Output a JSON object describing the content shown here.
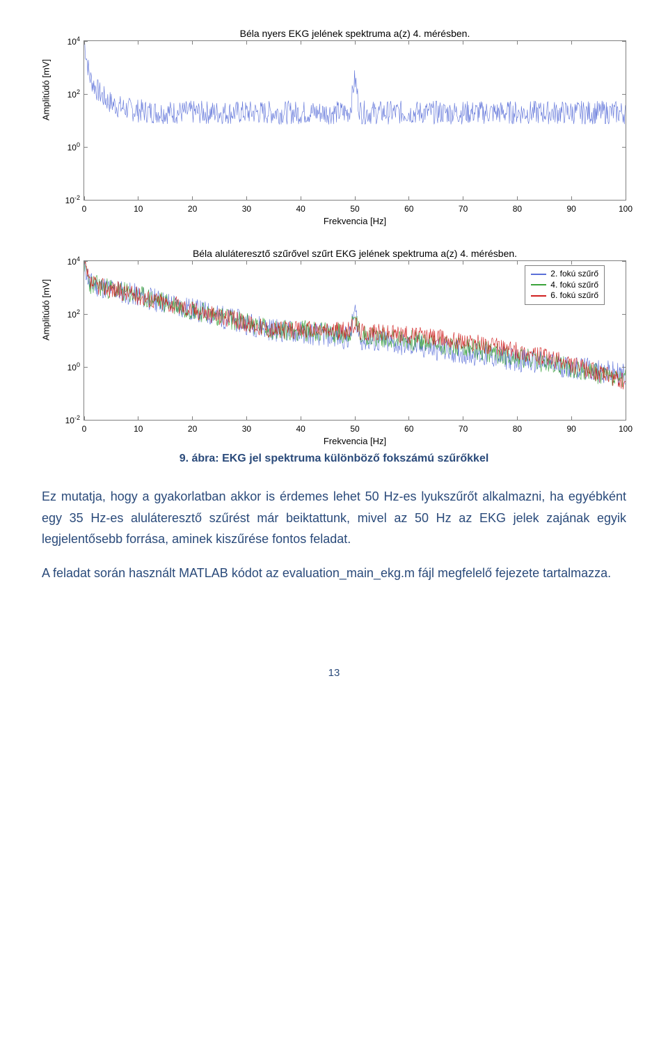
{
  "chart1": {
    "type": "line",
    "title": "Béla nyers EKG jelének spektruma a(z) 4. mérésben.",
    "ylabel": "Amplitúdó [mV]",
    "xlabel": "Frekvencia [Hz]",
    "yaxis_scale": "log",
    "yticks": [
      "4",
      "2",
      "0",
      "-2"
    ],
    "ytick_base": "10",
    "ylim_log10": [
      -2,
      4
    ],
    "xticks": [
      "0",
      "10",
      "20",
      "30",
      "40",
      "50",
      "60",
      "70",
      "80",
      "90",
      "100"
    ],
    "xlim": [
      0,
      100
    ],
    "series": [
      {
        "name": "raw",
        "color": "#5a6fd8",
        "stroke_width": 0.6
      }
    ],
    "grid_color": "#808080",
    "background_color": "#ffffff",
    "font_size_title": 14,
    "font_size_axis": 13,
    "font_size_tick": 12
  },
  "chart2": {
    "type": "line",
    "title": "Béla aluláteresztő szűrővel szűrt EKG jelének spektruma a(z) 4. mérésben.",
    "ylabel": "Amplitúdó [mV]",
    "xlabel": "Frekvencia [Hz]",
    "yaxis_scale": "log",
    "yticks": [
      "4",
      "2",
      "0",
      "-2"
    ],
    "ytick_base": "10",
    "ylim_log10": [
      -2,
      4
    ],
    "xticks": [
      "0",
      "10",
      "20",
      "30",
      "40",
      "50",
      "60",
      "70",
      "80",
      "90",
      "100"
    ],
    "xlim": [
      0,
      100
    ],
    "legend": {
      "items": [
        {
          "label": "2. fokú szűrő",
          "color": "#5a6fd8"
        },
        {
          "label": "4. fokú szűrő",
          "color": "#3aa33a"
        },
        {
          "label": "6. fokú szűrő",
          "color": "#d02020"
        }
      ],
      "position": "upper-right"
    },
    "series": [
      {
        "name": "2nd-order",
        "color": "#5a6fd8",
        "stroke_width": 0.6
      },
      {
        "name": "4th-order",
        "color": "#3aa33a",
        "stroke_width": 0.6
      },
      {
        "name": "6th-order",
        "color": "#d02020",
        "stroke_width": 0.6
      }
    ],
    "grid_color": "#808080",
    "background_color": "#ffffff",
    "font_size_title": 14,
    "font_size_axis": 13,
    "font_size_tick": 12
  },
  "caption": "9. ábra: EKG jel spektruma különböző fokszámú szűrőkkel",
  "paragraphs": [
    "Ez mutatja, hogy a gyakorlatban akkor is érdemes lehet 50 Hz-es lyukszűrőt alkalmazni, ha egyébként egy 35 Hz-es aluláteresztő szűrést már beiktattunk, mivel az 50 Hz az EKG jelek zajának egyik legjelentősebb forrása, aminek kiszűrése fontos feladat.",
    "A feladat során használt MATLAB kódot az evaluation_main_ekg.m fájl megfelelő fejezete tartalmazza."
  ],
  "page_number": "13",
  "text_color": "#2a4a7a",
  "body_font_family": "Trebuchet MS",
  "body_font_size": 18
}
